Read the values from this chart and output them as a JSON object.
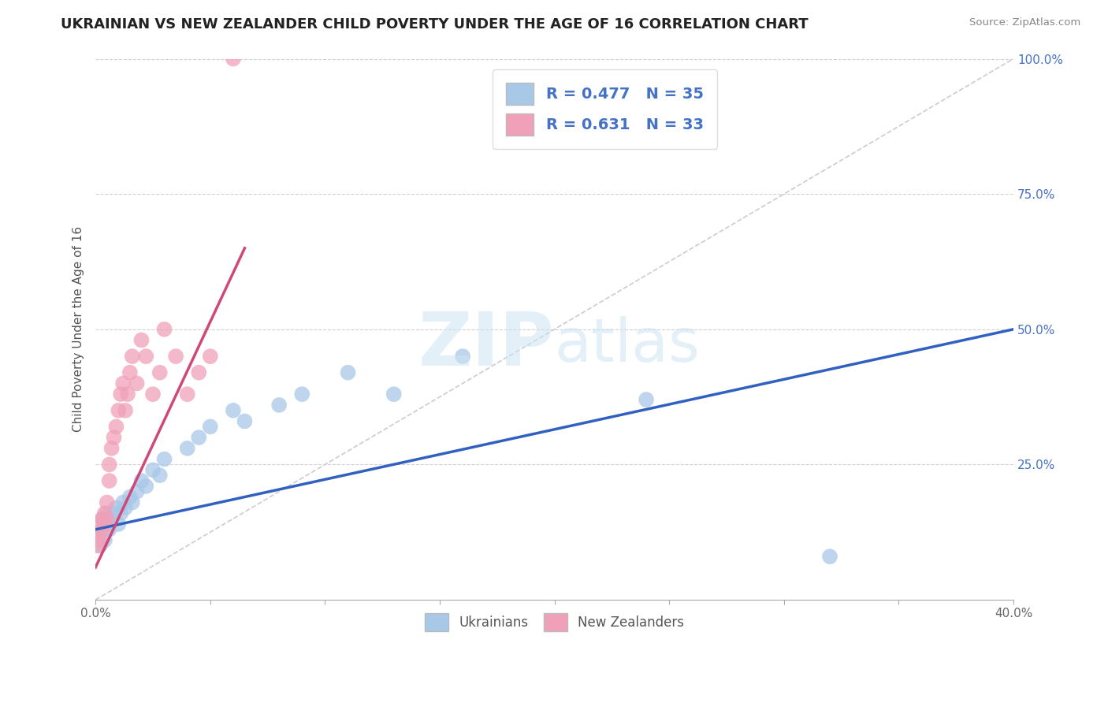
{
  "title": "UKRAINIAN VS NEW ZEALANDER CHILD POVERTY UNDER THE AGE OF 16 CORRELATION CHART",
  "source": "Source: ZipAtlas.com",
  "ylabel": "Child Poverty Under the Age of 16",
  "xlim": [
    0.0,
    0.4
  ],
  "ylim": [
    0.0,
    1.0
  ],
  "xticks": [
    0.0,
    0.05,
    0.1,
    0.15,
    0.2,
    0.25,
    0.3,
    0.35,
    0.4
  ],
  "xticklabels": [
    "0.0%",
    "",
    "",
    "",
    "",
    "",
    "",
    "",
    "40.0%"
  ],
  "yticks_right": [
    0.0,
    0.25,
    0.5,
    0.75,
    1.0
  ],
  "yticklabels_right": [
    "",
    "25.0%",
    "50.0%",
    "75.0%",
    "100.0%"
  ],
  "R_blue": 0.477,
  "N_blue": 35,
  "R_pink": 0.631,
  "N_pink": 33,
  "blue_color": "#a8c8e8",
  "pink_color": "#f0a0b8",
  "blue_line_color": "#3060c0",
  "pink_line_color": "#d04878",
  "legend_label_blue": "Ukrainians",
  "legend_label_pink": "New Zealanders",
  "blue_scatter_x": [
    0.001,
    0.002,
    0.003,
    0.003,
    0.004,
    0.005,
    0.005,
    0.006,
    0.007,
    0.008,
    0.009,
    0.01,
    0.011,
    0.012,
    0.013,
    0.015,
    0.016,
    0.018,
    0.02,
    0.022,
    0.025,
    0.028,
    0.03,
    0.04,
    0.045,
    0.05,
    0.06,
    0.065,
    0.08,
    0.09,
    0.11,
    0.13,
    0.16,
    0.24,
    0.32
  ],
  "blue_scatter_y": [
    0.12,
    0.1,
    0.13,
    0.15,
    0.11,
    0.14,
    0.16,
    0.13,
    0.15,
    0.16,
    0.17,
    0.14,
    0.16,
    0.18,
    0.17,
    0.19,
    0.18,
    0.2,
    0.22,
    0.21,
    0.24,
    0.23,
    0.26,
    0.28,
    0.3,
    0.32,
    0.35,
    0.33,
    0.36,
    0.38,
    0.42,
    0.38,
    0.45,
    0.37,
    0.08
  ],
  "pink_scatter_x": [
    0.001,
    0.001,
    0.002,
    0.002,
    0.003,
    0.003,
    0.004,
    0.004,
    0.005,
    0.005,
    0.006,
    0.006,
    0.007,
    0.008,
    0.009,
    0.01,
    0.011,
    0.012,
    0.013,
    0.014,
    0.015,
    0.016,
    0.018,
    0.02,
    0.022,
    0.025,
    0.028,
    0.03,
    0.035,
    0.04,
    0.045,
    0.05,
    0.06
  ],
  "pink_scatter_y": [
    0.1,
    0.12,
    0.11,
    0.14,
    0.13,
    0.15,
    0.14,
    0.16,
    0.18,
    0.15,
    0.22,
    0.25,
    0.28,
    0.3,
    0.32,
    0.35,
    0.38,
    0.4,
    0.35,
    0.38,
    0.42,
    0.45,
    0.4,
    0.48,
    0.45,
    0.38,
    0.42,
    0.5,
    0.45,
    0.38,
    0.42,
    0.45,
    1.0
  ],
  "blue_trend_x0": 0.0,
  "blue_trend_y0": 0.13,
  "blue_trend_x1": 0.4,
  "blue_trend_y1": 0.5,
  "pink_trend_x0": 0.0,
  "pink_trend_y0": 0.06,
  "pink_trend_x1": 0.065,
  "pink_trend_y1": 0.65,
  "diag_line_x0": 0.0,
  "diag_line_y0": 0.0,
  "diag_line_x1": 0.4,
  "diag_line_y1": 1.0,
  "background_color": "#ffffff",
  "grid_color": "#cccccc",
  "title_fontsize": 13,
  "axis_label_fontsize": 11,
  "tick_fontsize": 11,
  "legend_fontsize": 14
}
